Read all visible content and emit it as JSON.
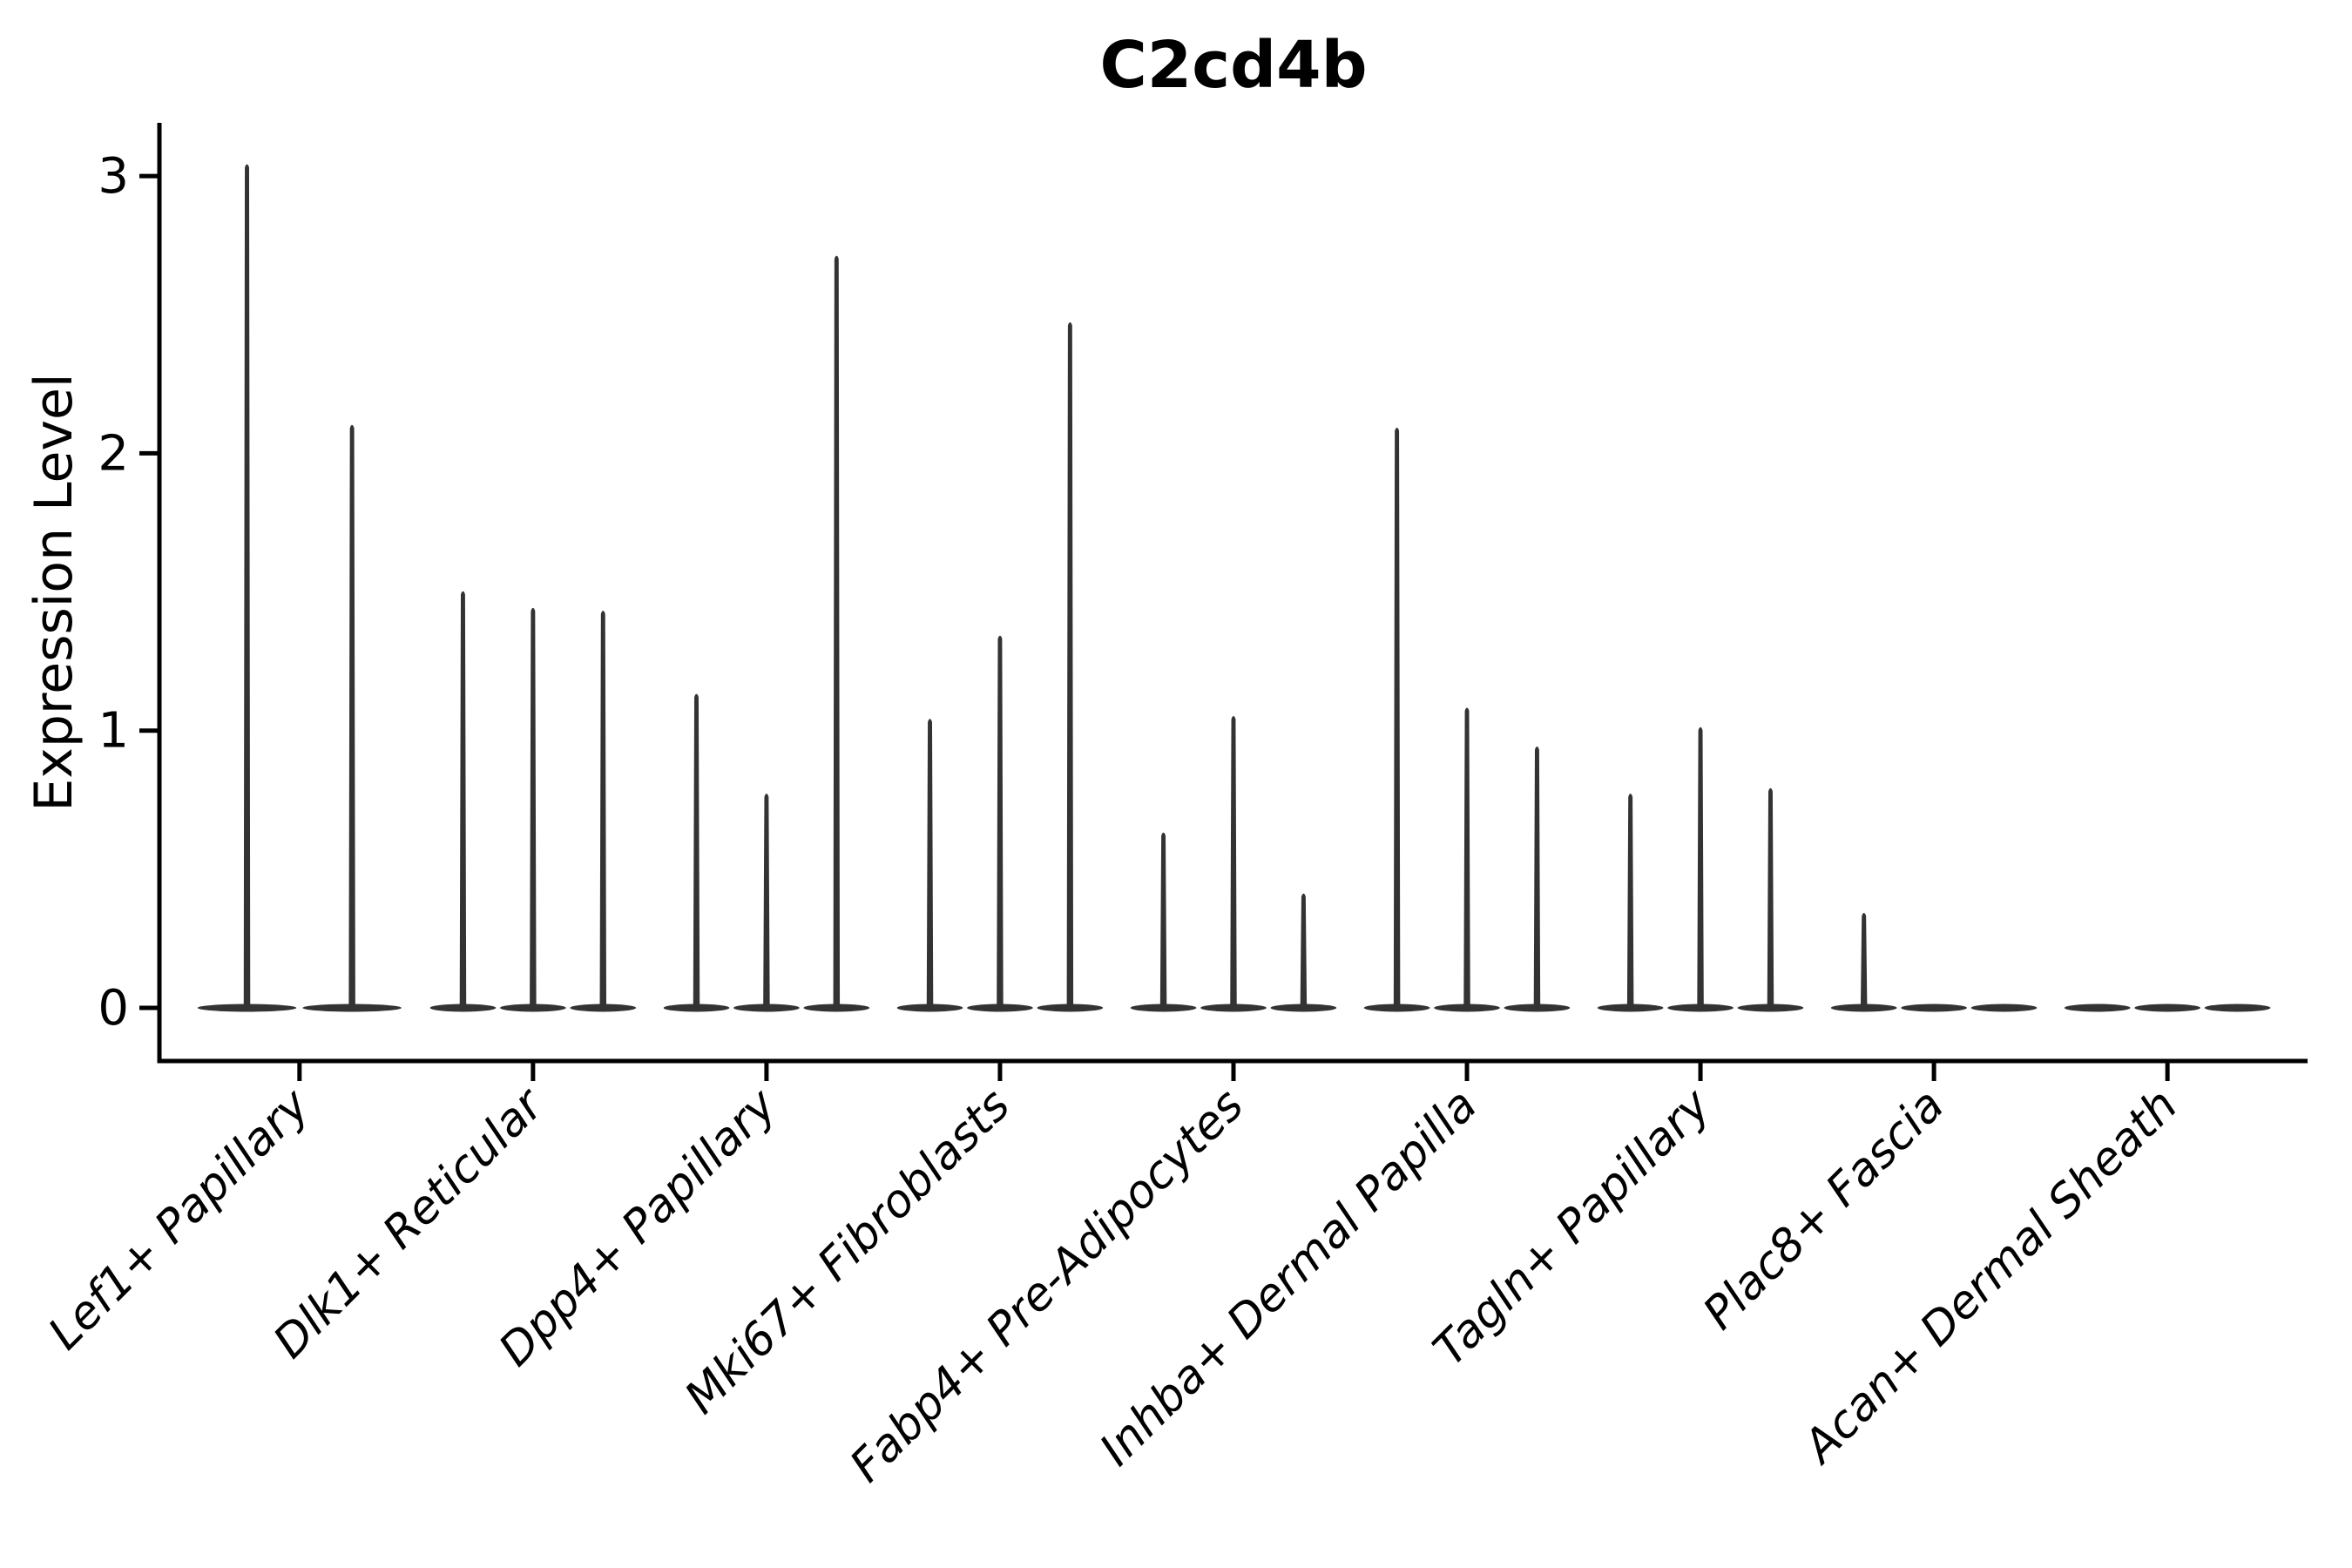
{
  "figure": {
    "background": "#ffffff"
  },
  "chart_data": {
    "type": "violin",
    "title": "C2cd4b",
    "xlabel": "",
    "ylabel": "Expression Level",
    "yticks": [
      0,
      1,
      2,
      3
    ],
    "ylim": [
      -0.19,
      3.19
    ],
    "grid": false,
    "legend": "none",
    "violin_color": "#333333",
    "axis_color": "#000000",
    "style_note": "needle-shaped violins: distribution mass concentrated at 0 with thin spike to max expression; groups of 2-3 sample violins per cell type",
    "categories": [
      "Lef1+ Papillary",
      "Dlk1+ Reticular",
      "Dpp4+ Papillary",
      "Mki67+ Fibroblasts",
      "Fabp4+ Pre-Adipocytes",
      "Inhba+ Dermal Papilla",
      "Tagln+ Papillary",
      "Plac8+ Fascia",
      "Acan+ Dermal Sheath"
    ],
    "groups": [
      {
        "category": "Lef1+ Papillary",
        "violins": [
          {
            "max": 3.04
          },
          {
            "max": 2.1
          }
        ]
      },
      {
        "category": "Dlk1+ Reticular",
        "violins": [
          {
            "max": 1.5
          },
          {
            "max": 1.44
          },
          {
            "max": 1.43
          }
        ]
      },
      {
        "category": "Dpp4+ Papillary",
        "violins": [
          {
            "max": 1.13
          },
          {
            "max": 0.77
          },
          {
            "max": 2.71
          }
        ]
      },
      {
        "category": "Mki67+ Fibroblasts",
        "violins": [
          {
            "max": 1.04
          },
          {
            "max": 1.34
          },
          {
            "max": 2.47
          }
        ]
      },
      {
        "category": "Fabp4+ Pre-Adipocytes",
        "violins": [
          {
            "max": 0.63
          },
          {
            "max": 1.05
          },
          {
            "max": 0.41
          }
        ]
      },
      {
        "category": "Inhba+ Dermal Papilla",
        "violins": [
          {
            "max": 2.09
          },
          {
            "max": 1.08
          },
          {
            "max": 0.94
          }
        ]
      },
      {
        "category": "Tagln+ Papillary",
        "violins": [
          {
            "max": 0.77
          },
          {
            "max": 1.01
          },
          {
            "max": 0.79
          }
        ]
      },
      {
        "category": "Plac8+ Fascia",
        "violins": [
          {
            "max": 0.34
          },
          {
            "max": 0
          },
          {
            "max": 0
          }
        ]
      },
      {
        "category": "Acan+ Dermal Sheath",
        "violins": [
          {
            "max": 0
          },
          {
            "max": 0
          },
          {
            "max": 0
          }
        ]
      }
    ]
  }
}
